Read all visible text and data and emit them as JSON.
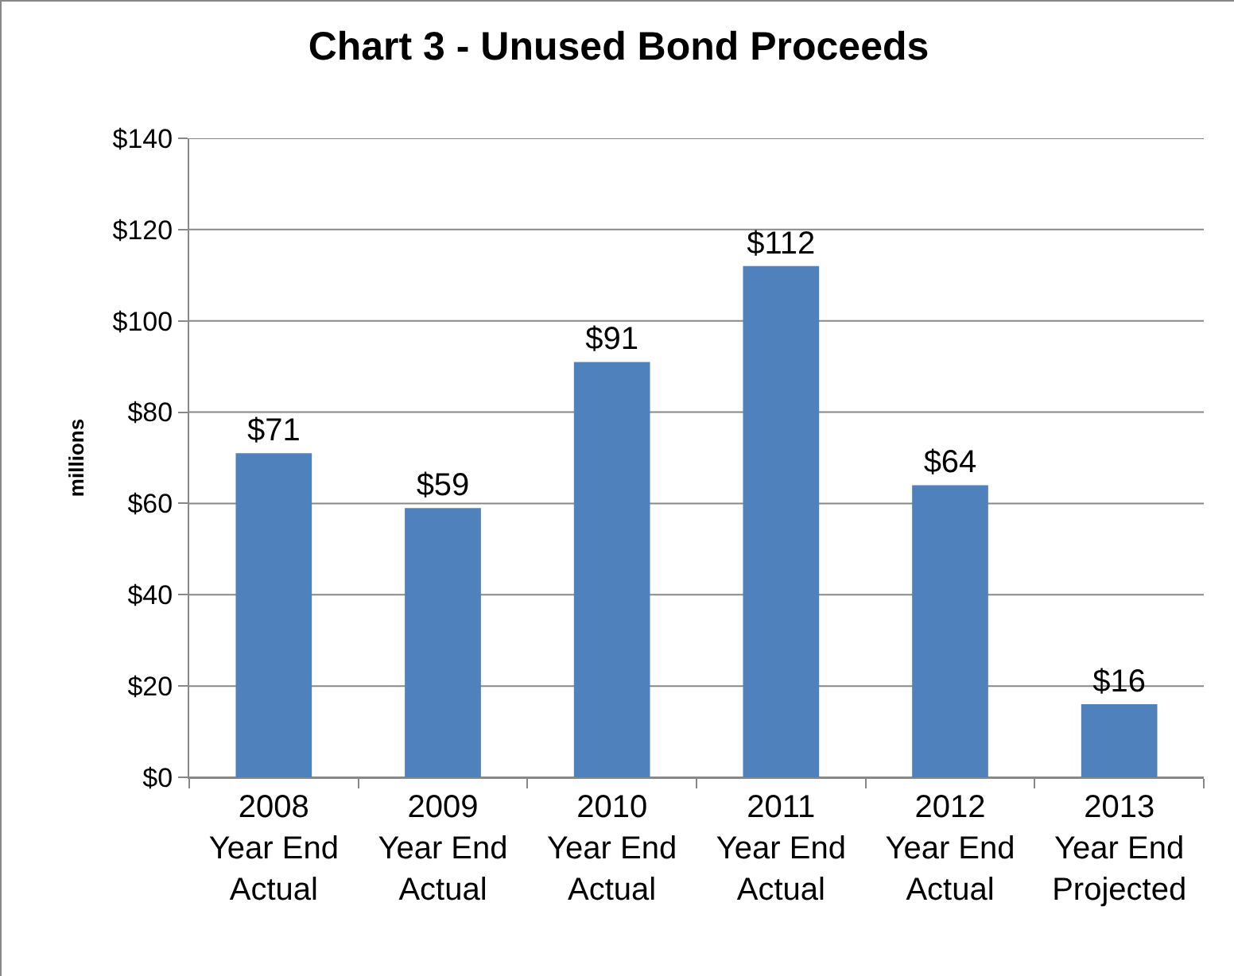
{
  "chart_data": {
    "type": "bar",
    "title": "Chart 3 - Unused Bond Proceeds",
    "ylabel": "millions",
    "categories": [
      "2008\nYear End\nActual",
      "2009\nYear End\nActual",
      "2010\nYear End\nActual",
      "2011\nYear End\nActual",
      "2012\nYear End\nActual",
      "2013\nYear End\nProjected"
    ],
    "values": [
      71,
      59,
      91,
      112,
      64,
      16
    ],
    "value_labels": [
      "$71",
      "$59",
      "$91",
      "$112",
      "$64",
      "$16"
    ],
    "color": "#4f81bd",
    "ylim": [
      0,
      140
    ],
    "yticks": [
      {
        "value": 0,
        "label": "$0"
      },
      {
        "value": 20,
        "label": "$20"
      },
      {
        "value": 40,
        "label": "$40"
      },
      {
        "value": 60,
        "label": "$60"
      },
      {
        "value": 80,
        "label": "$80"
      },
      {
        "value": 100,
        "label": "$100"
      },
      {
        "value": 120,
        "label": "$120"
      },
      {
        "value": 140,
        "label": "$140"
      }
    ],
    "grid": "y"
  }
}
